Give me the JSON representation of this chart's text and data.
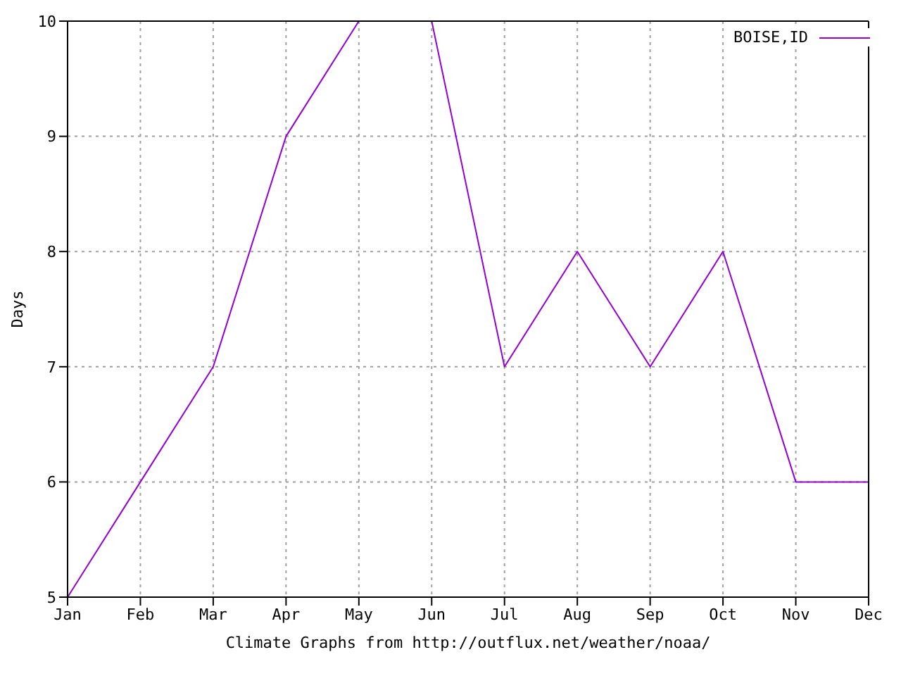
{
  "chart_data": {
    "type": "line",
    "xlabel": "Climate Graphs from http://outflux.net/weather/noaa/",
    "ylabel": "Days",
    "categories": [
      "Jan",
      "Feb",
      "Mar",
      "Apr",
      "May",
      "Jun",
      "Jul",
      "Aug",
      "Sep",
      "Oct",
      "Nov",
      "Dec"
    ],
    "series": [
      {
        "name": "BOISE,ID",
        "color": "#9400d3",
        "values": [
          5,
          6,
          7,
          9,
          10,
          10,
          7,
          8,
          7,
          8,
          6,
          6
        ]
      }
    ],
    "ylim": [
      5,
      10
    ],
    "yticks": [
      5,
      6,
      7,
      8,
      9,
      10
    ],
    "grid": true,
    "legend": "top right",
    "marker": "none",
    "line_style": "solid"
  }
}
